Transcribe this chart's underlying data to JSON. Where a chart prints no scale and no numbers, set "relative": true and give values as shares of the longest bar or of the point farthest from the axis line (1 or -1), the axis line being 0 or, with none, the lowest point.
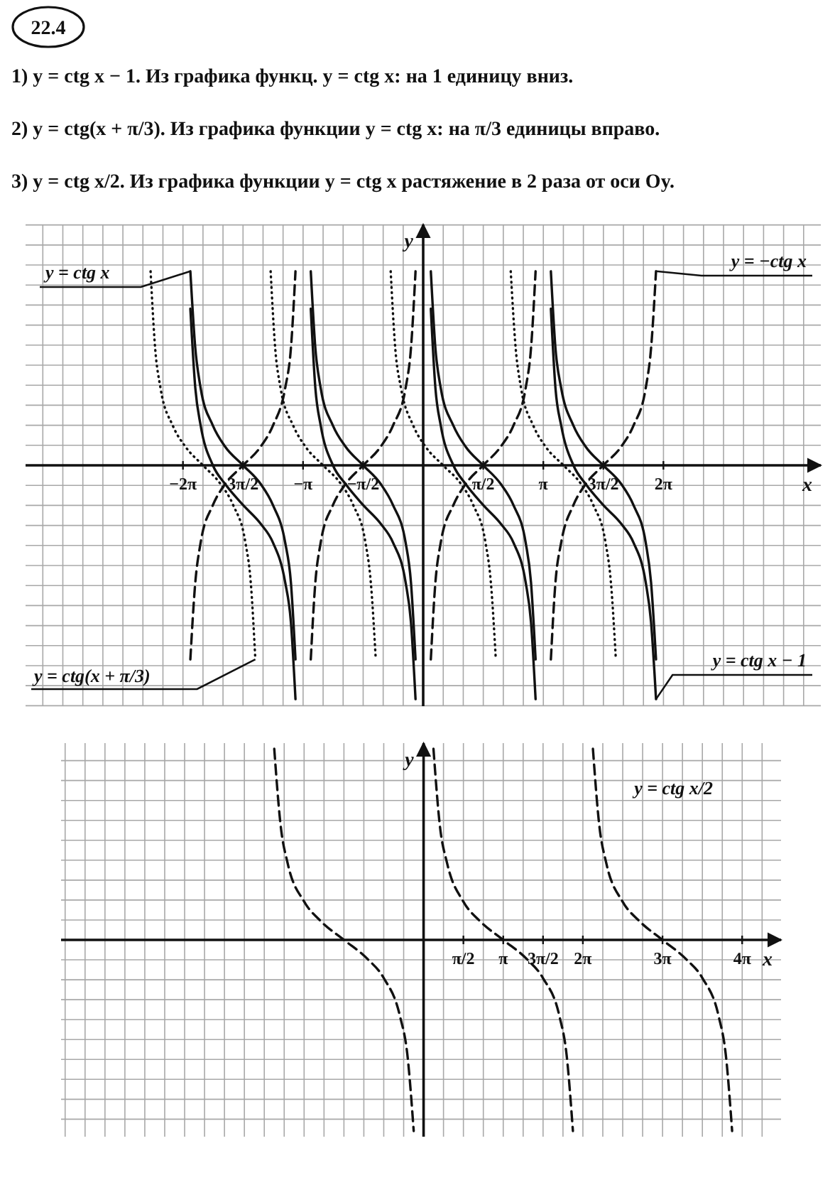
{
  "chart_data": [
    {
      "type": "line",
      "title": "22.4",
      "annotations": [
        "1) y = ctg x − 1. Из графика функц. y = ctg x: на 1 единицу вниз.",
        "2) y = ctg(x + π/3). Из графика функции y = ctg x: на π/3 единицы вправо.",
        "3) y = ctg x/2. Из графика функции y = ctg x растяжение в 2 раза от оси Oy."
      ],
      "xlabel": "x",
      "ylabel": "y",
      "relative": true,
      "grid": true,
      "xlim": [
        -10.4,
        10.4
      ],
      "xticks": [
        {
          "value": -6.283,
          "label": "−2π"
        },
        {
          "value": -4.712,
          "label": "3π/2"
        },
        {
          "value": -3.142,
          "label": "−π"
        },
        {
          "value": -1.571,
          "label": "−π/2"
        },
        {
          "value": 1.571,
          "label": "π/2"
        },
        {
          "value": 3.142,
          "label": "π"
        },
        {
          "value": 4.712,
          "label": "3π/2"
        },
        {
          "value": 6.283,
          "label": "2π"
        }
      ],
      "series": [
        {
          "name": "y = ctg x",
          "color": "#111111",
          "line_style": "solid",
          "x": [
            -6.09,
            -5.96,
            -5.82,
            -5.5,
            -5.18,
            -4.71,
            -4.25,
            -3.93,
            -3.61,
            -3.46,
            -3.34,
            -3.14,
            -2.94,
            -2.82,
            -2.68,
            -2.36,
            -2.03,
            -1.57,
            -1.11,
            -0.79,
            -0.46,
            -0.32,
            -0.2,
            0,
            0.2,
            0.32,
            0.46,
            0.79,
            1.11,
            1.57,
            2.03,
            2.36,
            2.68,
            2.82,
            2.94,
            3.14,
            3.34,
            3.46,
            3.61,
            3.93,
            4.25,
            4.71,
            5.18,
            5.5,
            5.82,
            5.96,
            6.09
          ],
          "values": [
            0.83,
            0.5,
            0.33,
            0.17,
            0.08,
            0,
            -0.08,
            -0.17,
            -0.33,
            -0.5,
            -0.83,
            null,
            0.83,
            0.5,
            0.33,
            0.17,
            0.08,
            0,
            -0.08,
            -0.17,
            -0.33,
            -0.5,
            -0.83,
            null,
            0.83,
            0.5,
            0.33,
            0.17,
            0.08,
            0,
            -0.08,
            -0.17,
            -0.33,
            -0.5,
            -0.83,
            null,
            0.83,
            0.5,
            0.33,
            0.17,
            0.08,
            0,
            -0.08,
            -0.17,
            -0.33,
            -0.5,
            -0.83
          ]
        },
        {
          "name": "y = −ctg x",
          "color": "#111111",
          "line_style": "dashed",
          "x": [
            -6.09,
            -5.96,
            -5.82,
            -5.5,
            -5.18,
            -4.71,
            -4.25,
            -3.93,
            -3.61,
            -3.46,
            -3.34,
            -3.14,
            -2.94,
            -2.82,
            -2.68,
            -2.36,
            -2.03,
            -1.57,
            -1.11,
            -0.79,
            -0.46,
            -0.32,
            -0.2,
            0,
            0.2,
            0.32,
            0.46,
            0.79,
            1.11,
            1.57,
            2.03,
            2.36,
            2.68,
            2.82,
            2.94,
            3.14,
            3.34,
            3.46,
            3.61,
            3.93,
            4.25,
            4.71,
            5.18,
            5.5,
            5.82,
            5.96,
            6.09
          ],
          "values": [
            -0.83,
            -0.5,
            -0.33,
            -0.17,
            -0.08,
            0,
            0.08,
            0.17,
            0.33,
            0.5,
            0.83,
            null,
            -0.83,
            -0.5,
            -0.33,
            -0.17,
            -0.08,
            0,
            0.08,
            0.17,
            0.33,
            0.5,
            0.83,
            null,
            -0.83,
            -0.5,
            -0.33,
            -0.17,
            -0.08,
            0,
            0.08,
            0.17,
            0.33,
            0.5,
            0.83,
            null,
            -0.83,
            -0.5,
            -0.33,
            -0.17,
            -0.08,
            0,
            0.08,
            0.17,
            0.33,
            0.5,
            0.83
          ]
        },
        {
          "name": "y = ctg(x + π/3)",
          "color": "#111111",
          "line_style": "dotted",
          "x": [
            -7.13,
            -7.01,
            -6.87,
            -6.55,
            -6.22,
            -5.76,
            -5.3,
            -4.97,
            -4.65,
            -4.51,
            -4.39,
            -4.19,
            -3.99,
            -3.87,
            -3.73,
            -3.4,
            -3.08,
            -2.62,
            -2.15,
            -1.83,
            -1.51,
            -1.37,
            -1.24,
            -1.05,
            -0.85,
            -0.73,
            -0.58,
            -0.26,
            0.06,
            0.52,
            0.99,
            1.31,
            1.63,
            1.77,
            1.9,
            2.09,
            2.29,
            2.42,
            2.56,
            2.88,
            3.2,
            3.67,
            4.13,
            4.45,
            4.77,
            4.91,
            5.04
          ],
          "values": [
            0.83,
            0.5,
            0.33,
            0.17,
            0.08,
            0,
            -0.08,
            -0.17,
            -0.33,
            -0.5,
            -0.83,
            null,
            0.83,
            0.5,
            0.33,
            0.17,
            0.08,
            0,
            -0.08,
            -0.17,
            -0.33,
            -0.5,
            -0.83,
            null,
            0.83,
            0.5,
            0.33,
            0.17,
            0.08,
            0,
            -0.08,
            -0.17,
            -0.33,
            -0.5,
            -0.83,
            null,
            0.83,
            0.5,
            0.33,
            0.17,
            0.08,
            0,
            -0.08,
            -0.17,
            -0.33,
            -0.5,
            -0.83
          ]
        },
        {
          "name": "y = ctg x − 1",
          "color": "#111111",
          "line_style": "solid",
          "x": [
            -6.09,
            -5.96,
            -5.82,
            -5.5,
            -5.18,
            -4.71,
            -4.25,
            -3.93,
            -3.61,
            -3.46,
            -3.34,
            -3.14,
            -2.94,
            -2.82,
            -2.68,
            -2.36,
            -2.03,
            -1.57,
            -1.11,
            -0.79,
            -0.46,
            -0.32,
            -0.2,
            0,
            0.2,
            0.32,
            0.46,
            0.79,
            1.11,
            1.57,
            2.03,
            2.36,
            2.68,
            2.82,
            2.94,
            3.14,
            3.34,
            3.46,
            3.61,
            3.93,
            4.25,
            4.71,
            5.18,
            5.5,
            5.82,
            5.96,
            6.09
          ],
          "values": [
            0.67,
            0.33,
            0.17,
            0,
            -0.08,
            -0.17,
            -0.25,
            -0.33,
            -0.5,
            -0.67,
            -1,
            null,
            0.67,
            0.33,
            0.17,
            0,
            -0.08,
            -0.17,
            -0.25,
            -0.33,
            -0.5,
            -0.67,
            -1,
            null,
            0.67,
            0.33,
            0.17,
            0,
            -0.08,
            -0.17,
            -0.25,
            -0.33,
            -0.5,
            -0.67,
            -1,
            null,
            0.67,
            0.33,
            0.17,
            0,
            -0.08,
            -0.17,
            -0.25,
            -0.33,
            -0.5,
            -0.67,
            -1
          ]
        }
      ]
    },
    {
      "type": "line",
      "xlabel": "x",
      "ylabel": "y",
      "relative": true,
      "grid": true,
      "xlim": [
        -14.3,
        14.1
      ],
      "xticks": [
        {
          "value": 1.571,
          "label": "π/2"
        },
        {
          "value": 3.142,
          "label": "π"
        },
        {
          "value": 4.712,
          "label": "3π/2"
        },
        {
          "value": 6.283,
          "label": "2π"
        },
        {
          "value": 9.425,
          "label": "3π"
        },
        {
          "value": 12.566,
          "label": "4π"
        }
      ],
      "series": [
        {
          "name": "y = ctg x/2",
          "color": "#111111",
          "line_style": "dashed",
          "x": [
            -5.89,
            -5.64,
            -5.36,
            -4.71,
            -4.07,
            -3.14,
            -2.21,
            -1.57,
            -0.93,
            -0.64,
            -0.39,
            0,
            0.39,
            0.64,
            0.93,
            1.57,
            2.21,
            3.14,
            4.07,
            4.71,
            5.36,
            5.64,
            5.89,
            6.28,
            6.68,
            6.93,
            7.21,
            7.85,
            8.5,
            9.42,
            10.35,
            11,
            11.64,
            11.92,
            12.17
          ],
          "values": [
            1,
            0.6,
            0.4,
            0.2,
            0.1,
            0,
            -0.1,
            -0.2,
            -0.4,
            -0.6,
            -1,
            null,
            1,
            0.6,
            0.4,
            0.2,
            0.1,
            0,
            -0.1,
            -0.2,
            -0.4,
            -0.6,
            -1,
            null,
            1,
            0.6,
            0.4,
            0.2,
            0.1,
            0,
            -0.1,
            -0.2,
            -0.4,
            -0.6,
            -1
          ]
        }
      ]
    }
  ]
}
